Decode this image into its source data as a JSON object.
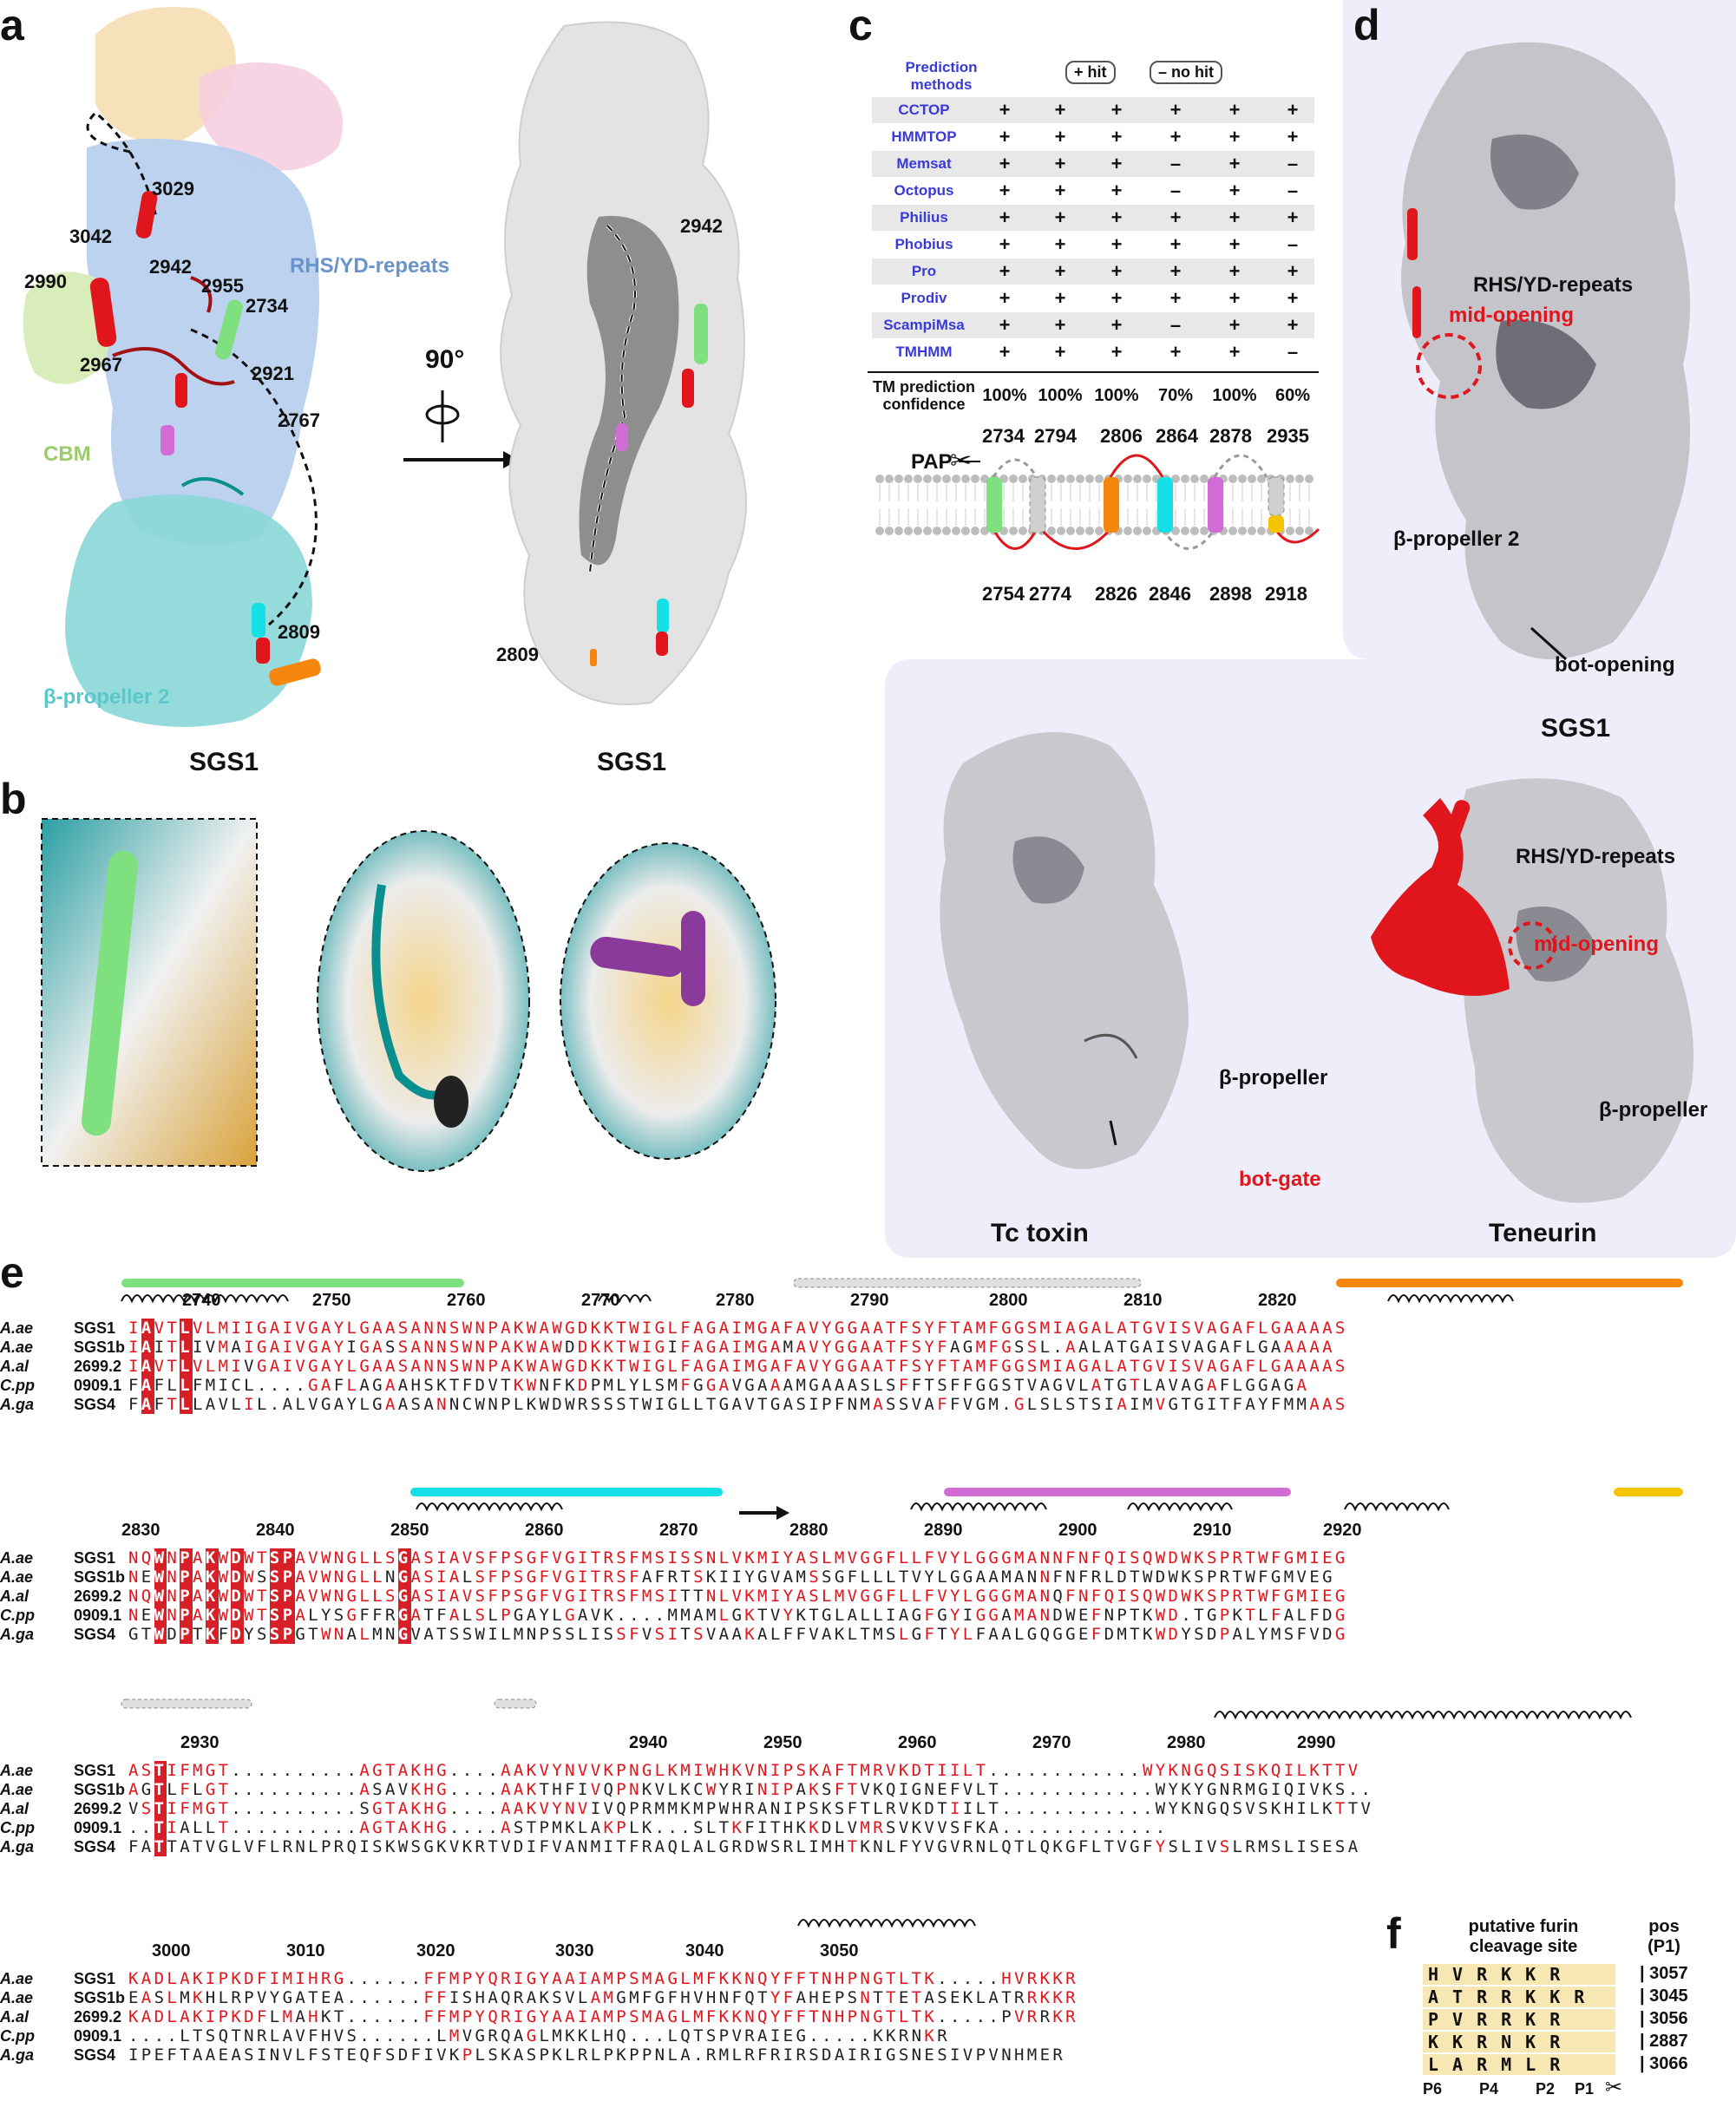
{
  "panels": {
    "a": {
      "letter": "a",
      "labels": [
        "3029",
        "3042",
        "2990",
        "2942",
        "2955",
        "2734",
        "2967",
        "2921",
        "2767",
        "2809"
      ],
      "domain_labels": {
        "rhs": "RHS/YD-repeats",
        "cbm": "CBM",
        "beta": "β-propeller 2"
      },
      "caption_left": "SGS1",
      "rotation": "90°",
      "right_labels": [
        "2942",
        "2809"
      ],
      "caption_right": "SGS1"
    },
    "b": {
      "letter": "b"
    },
    "c": {
      "letter": "c",
      "header": "Prediction methods",
      "legend_hit": "+ hit",
      "legend_nohit": "– no hit",
      "methods": [
        {
          "name": "CCTOP",
          "vals": [
            "+",
            "+",
            "+",
            "+",
            "+",
            "+"
          ]
        },
        {
          "name": "HMMTOP",
          "vals": [
            "+",
            "+",
            "+",
            "+",
            "+",
            "+"
          ]
        },
        {
          "name": "Memsat",
          "vals": [
            "+",
            "+",
            "+",
            "–",
            "+",
            "–"
          ]
        },
        {
          "name": "Octopus",
          "vals": [
            "+",
            "+",
            "+",
            "–",
            "+",
            "–"
          ]
        },
        {
          "name": "Philius",
          "vals": [
            "+",
            "+",
            "+",
            "+",
            "+",
            "+"
          ]
        },
        {
          "name": "Phobius",
          "vals": [
            "+",
            "+",
            "+",
            "+",
            "+",
            "–"
          ]
        },
        {
          "name": "Pro",
          "vals": [
            "+",
            "+",
            "+",
            "+",
            "+",
            "+"
          ]
        },
        {
          "name": "Prodiv",
          "vals": [
            "+",
            "+",
            "+",
            "+",
            "+",
            "+"
          ]
        },
        {
          "name": "ScampiMsa",
          "vals": [
            "+",
            "+",
            "+",
            "–",
            "+",
            "+"
          ]
        },
        {
          "name": "TMHMM",
          "vals": [
            "+",
            "+",
            "+",
            "+",
            "+",
            "–"
          ]
        }
      ],
      "confidence_label": "TM prediction confidence",
      "confidence": [
        "100%",
        "100%",
        "100%",
        "70%",
        "100%",
        "60%"
      ],
      "pap": "PAP",
      "top_positions": [
        "2734",
        "2794",
        "2806",
        "2864",
        "2878",
        "2935"
      ],
      "bottom_positions": [
        "2754",
        "2774",
        "2826",
        "2846",
        "2898",
        "2918"
      ]
    },
    "d": {
      "letter": "d",
      "sgs1_labels": {
        "rhs": "RHS/YD-repeats",
        "mid": "mid-opening",
        "beta": "β-propeller 2",
        "bot": "bot-opening",
        "caption": "SGS1"
      },
      "tc_labels": {
        "beta": "β-propeller",
        "gate": "bot-gate",
        "caption": "Tc toxin"
      },
      "ten_labels": {
        "rhs": "RHS/YD-repeats",
        "mid": "mid-opening",
        "beta": "β-propeller",
        "caption": "Teneurin"
      }
    },
    "e": {
      "letter": "e",
      "species": [
        {
          "sp": "A.ae",
          "id": "SGS1"
        },
        {
          "sp": "A.ae",
          "id": "SGS1b"
        },
        {
          "sp": "A.al",
          "id": "2699.2"
        },
        {
          "sp": "C.pp",
          "id": "0909.1"
        },
        {
          "sp": "A.ga",
          "id": "SGS4"
        }
      ],
      "blocks": [
        {
          "ticks": [
            "2740",
            "2750",
            "2760",
            "2770",
            "2780",
            "2790",
            "2800",
            "2810",
            "2820"
          ],
          "seqs": [
            "IAVTLVLMIIGAIVGAYLGAASANNSWNPAKWAWGDKKTWIGLFAGAIMGAFAVYGGAATFSYFTAMFGGSMIAGALATGVISVAGAFLGAAAAS",
            "IAITLIVMAIGAIVGAYIGASSANNSWNPAKWAWDDKKTWIGIFAGAIMGAMAVYGGAATFSYFAGMFGSSL.AALATGAISVAGAFLGAAAAA",
            "IAVTLVLMIVGAIVGAYLGAASANNSWNPAKWAWGDKKTWIGLFAGAIMGAFAVYGGAATFSYFTAMFGGSMIAGALATGVISVAGAFLGAAAAS",
            "FAFLLFMICL....GAFLAGAAHSKTFDVTKWNFKDPMLYLSMFGGAVGAAAMGAAASLSFFTSFFGGSTVAGVLATGTLAVAGAFLGGAGA",
            "FAFTLLAVLIL.ALVGAYLGAASANNCWNPLKWDWRSSSTWIGLLTGAVTGASIPFNMASSVAFFVGM.GLSLSTSIAIMVGTGITFAYFMMAAS"
          ]
        },
        {
          "ticks": [
            "2830",
            "2840",
            "2850",
            "2860",
            "2870",
            "2880",
            "2890",
            "2900",
            "2910",
            "2920"
          ],
          "seqs": [
            "NQWNPAKWDWTSPAVWNGLLSGASIAVSFPSGFVGITRSFMSISSNLVKMIYASLMVGGFLLFVYLGGGMANNFNFQISQWDWKSPRTWFGMIEG",
            "NEWNPAKWDWSSPAVWNGLLNGASIALSFPSGFVGITRSFAFRTSKIIYGVAMSSGFLLLTVYLGGAAMANNFNFRLDTWDWKSPRTWFGMVEG",
            "NQWNPAKWDWTSPAVWNGLLSGASIAVSFPSGFVGITRSFMSITTNLVKMIYASLMVGGFLLFVYLGGGMANQFNFQISQWDWKSPRTWFGMIEG",
            "NEWNPAKWDWTSPALYSGFFRGATFALSLPGAYLGAVK....MMAMLGKTVYKTGLALLIAGFGYIGGAMANDWEFNPTKWD.TGPKTLFALFDG",
            "GTWDPTKFDYSSPGTWNALMNGVATSSWILMNPSSLISSFVSITSVAAKALFFVAKLTMSLGFTYLFAALGQGGEFDMTKWDYSDPALYMSFVDG"
          ]
        },
        {
          "ticks": [
            "2930",
            "2940",
            "2950",
            "2960",
            "2970",
            "2980",
            "2990"
          ],
          "seqs": [
            "ASTIFMGT..........AGTAKHG....AAKVYNVVKPNGLKMIWHKVNIPSKAFTMRVKDTIILT............WYKNGQSISKQILKTTV",
            "AGTLFLGT..........ASAVKHG....AAKTHFIVQPNKVLKCWYRINIPAKSFTVKQIGNEFVLT............WYKYGNRMGIQIVKS..",
            "VSTIFMGT..........SGTAKHG....AAKVYNVIVQPRMMKMPWHRANIPSKSFTLRVKDTIILT............WYKNGQSVSKHILKTTV",
            "..TIALLT..........AGTAKHG....ASTPMKLAKPLK...SLTKFITHKKDLVMRSVKVVSFKA.............",
            "FATTATVGLVFLRNLPRQISKWSGKVKRTVDIFVANMITFRAQLALGRDWSRLIMHTKNLFYVGVRNLQTLQKGFLTVGFYSLIVSLRMSLISESA"
          ]
        },
        {
          "ticks": [
            "3000",
            "3010",
            "3020",
            "3030",
            "3040",
            "3050"
          ],
          "seqs": [
            "KADLAKIPKDFIMIHRG......FFMPYQRIGYAAIAMPSMAGLMFKKNQYFFTNHPNGTLTK.....HVRKKR",
            "EASLMKHLRPVYGATEA......FFISHAQRAKSVLAMGMFGFHVHNFQTYFAHEPSNTTETASEKLATRRKKR",
            "KADLAKIPKDFLMAHKT......FFMPYQRIGYAAIAMPSMAGLMFKKNQYFFTNHPNGTLTK.....PVRRKR",
            "....LTSQTNRLAVFHVS......LMVGRQAGLMKKLHQ...LQTSPVRAIEG.....KKRNKR",
            "IPEFTAAEASINVLFSTEQFSDFIVKPLSKASPKLRLPKPPNLA.RMLRFRIRSDAIRIGSNESIVPVNHMER"
          ]
        }
      ]
    },
    "f": {
      "letter": "f",
      "header_site": "putative furin cleavage site",
      "header_pos": "pos (P1)",
      "rows": [
        {
          "seq": [
            "H",
            "V",
            "R",
            "K",
            "K",
            "R"
          ],
          "pos": "3057"
        },
        {
          "seq": [
            "A",
            "T",
            "R",
            "R",
            "K",
            "K",
            "R"
          ],
          "pos": "3045"
        },
        {
          "seq": [
            "P",
            "V",
            "R",
            "R",
            "K",
            "R"
          ],
          "pos": "3056"
        },
        {
          "seq": [
            "K",
            "K",
            "R",
            "N",
            "K",
            "R"
          ],
          "pos": "2887"
        },
        {
          "seq": [
            "L",
            "A",
            "R",
            "M",
            "L",
            "R"
          ],
          "pos": "3066"
        }
      ],
      "footer": [
        "P6",
        "P4",
        "P2",
        "P1"
      ]
    }
  },
  "colors": {
    "tm1": "#7ee07e",
    "tm3": "#f5870f",
    "tm4": "#14e0e6",
    "tm5": "#d16bd6",
    "tm6": "#f5c400",
    "helix": "#e0161c",
    "rhs": "#a9c6ea",
    "cbm": "#cfe9a8",
    "beta": "#7fd6d9",
    "bg": "#eeeefb"
  }
}
